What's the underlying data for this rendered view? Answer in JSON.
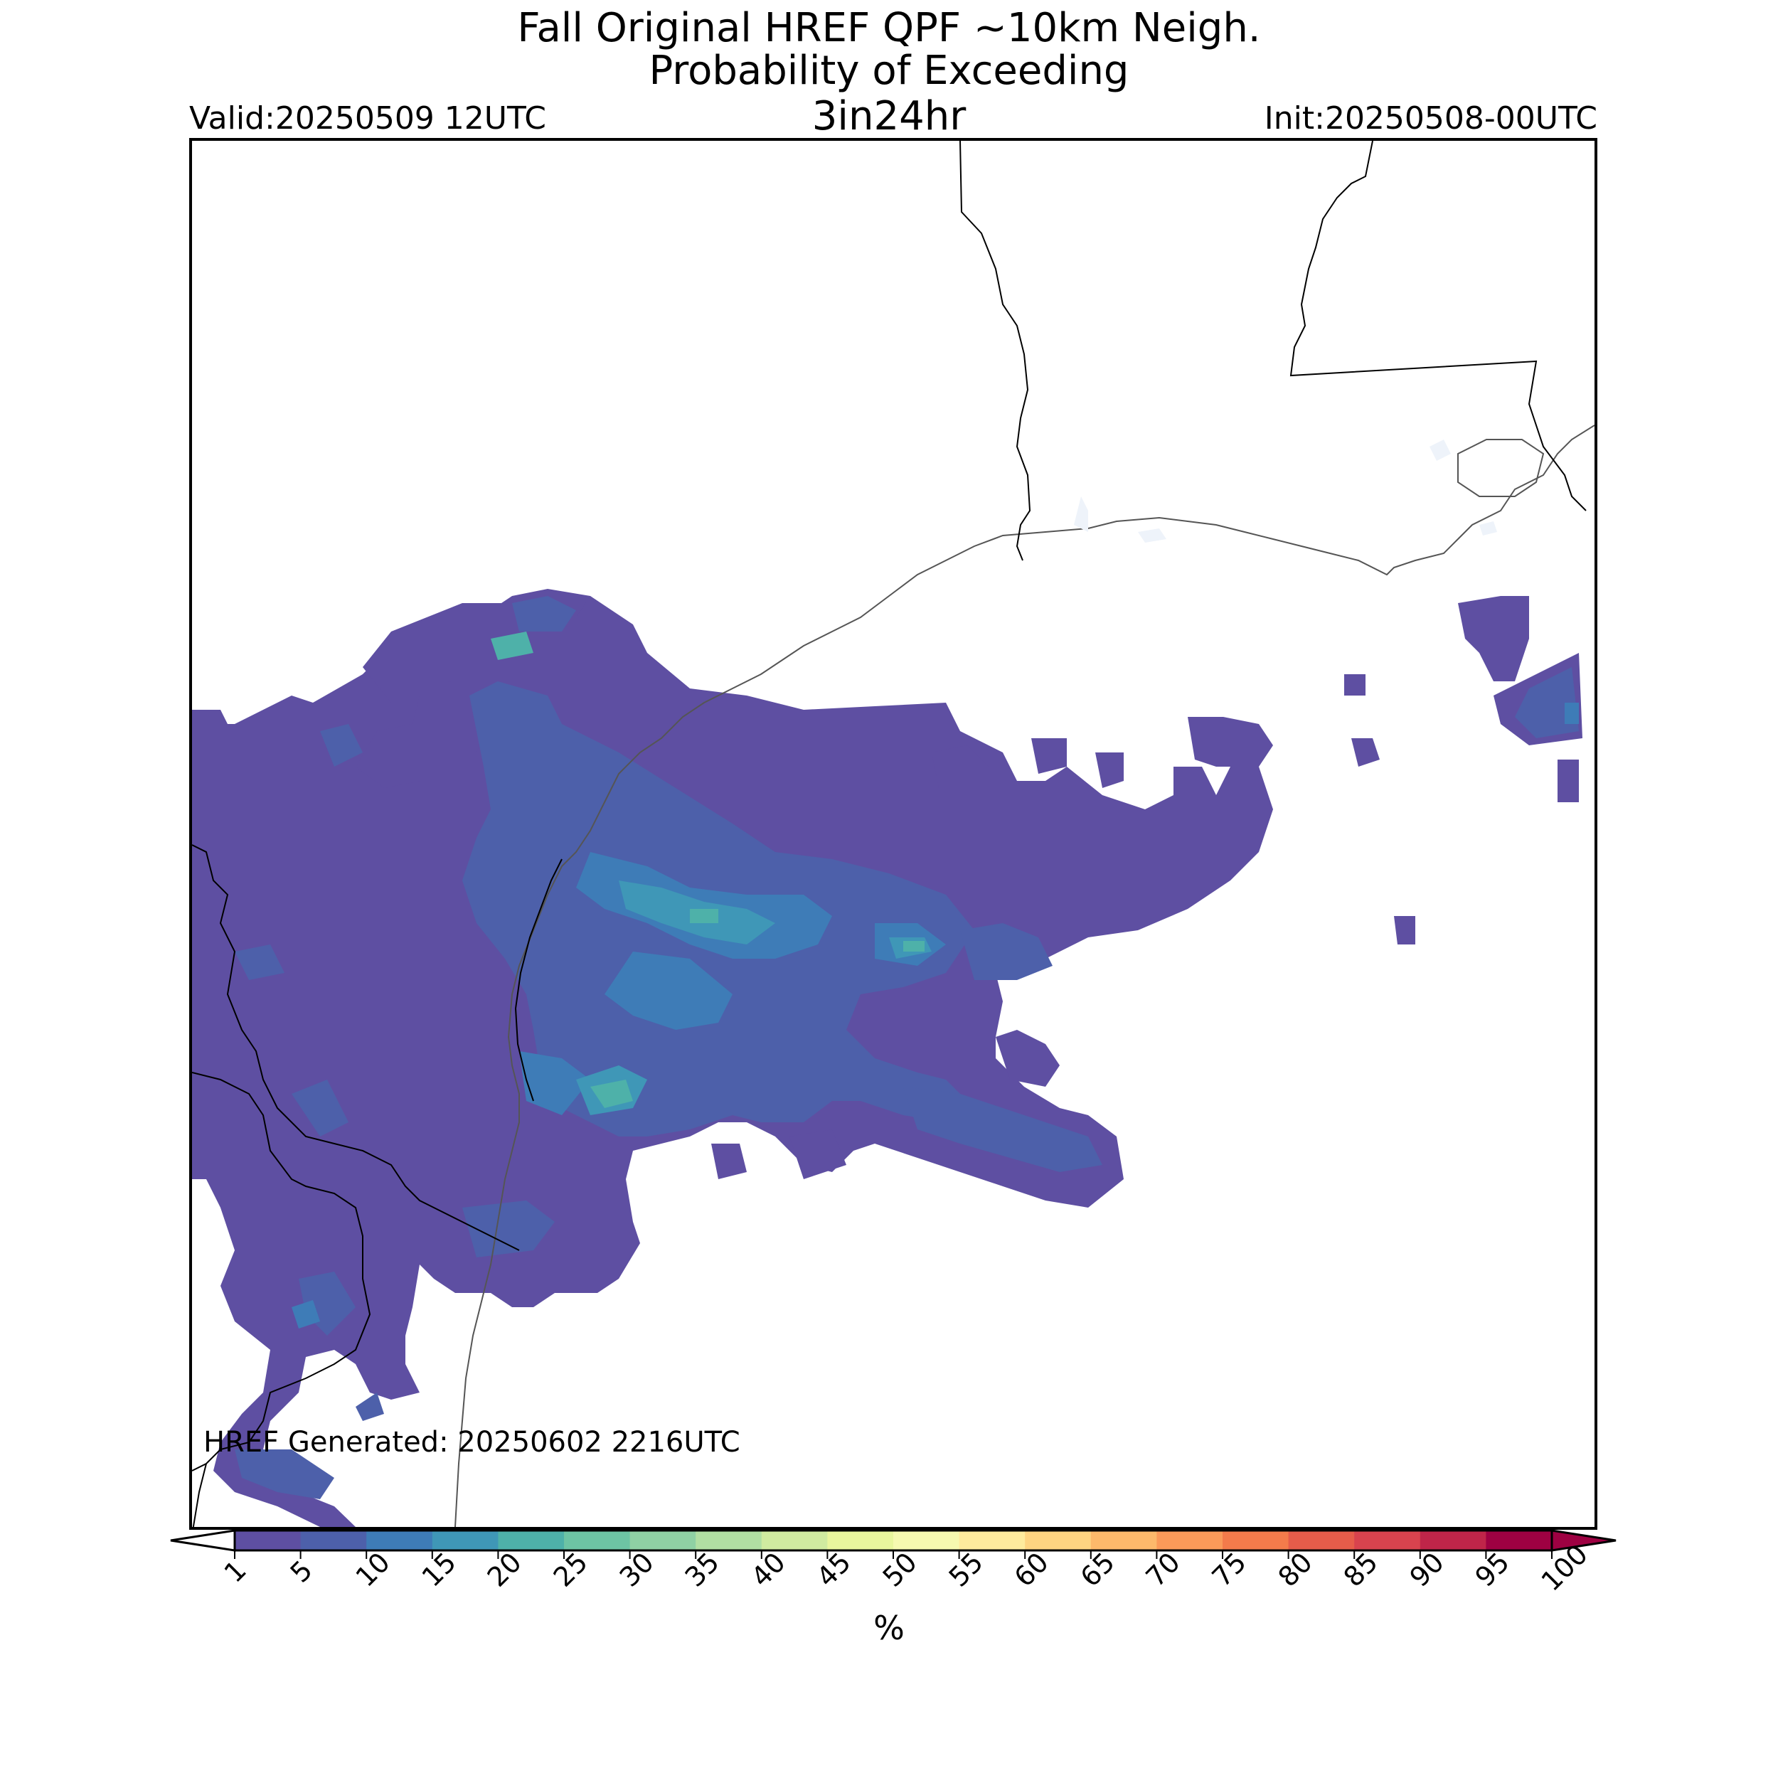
{
  "title": {
    "line1": "Fall Original HREF QPF ~10km Neigh.",
    "line2": "Probability of Exceeding",
    "line3": "3in24hr"
  },
  "valid_label": "Valid:20250509 12UTC",
  "init_label": "Init:20250508-00UTC",
  "generated_label": "HREF Generated: 20250602 2216UTC",
  "colorbar": {
    "units": "%",
    "ticks": [
      "1",
      "5",
      "10",
      "15",
      "20",
      "25",
      "30",
      "35",
      "40",
      "45",
      "50",
      "55",
      "60",
      "65",
      "70",
      "75",
      "80",
      "85",
      "90",
      "95",
      "100"
    ],
    "colors": [
      "#5e4fa2",
      "#4d60aa",
      "#3e7cb7",
      "#3f97b7",
      "#4eb1a9",
      "#6dc4a4",
      "#8fd1a4",
      "#b1dfa3",
      "#d0eba0",
      "#e9f69d",
      "#f6f9b0",
      "#feeb9d",
      "#fed481",
      "#fdb96b",
      "#fb9a59",
      "#f47b4b",
      "#e65c4a",
      "#d8434e",
      "#bf2549",
      "#9e0142"
    ],
    "over_color": "#9e0142",
    "under_color": "#ffffff"
  },
  "map": {
    "land_outline_color": "#000000",
    "water_outline_color": "#555555",
    "lake_fill_color": "#eef3fa"
  }
}
